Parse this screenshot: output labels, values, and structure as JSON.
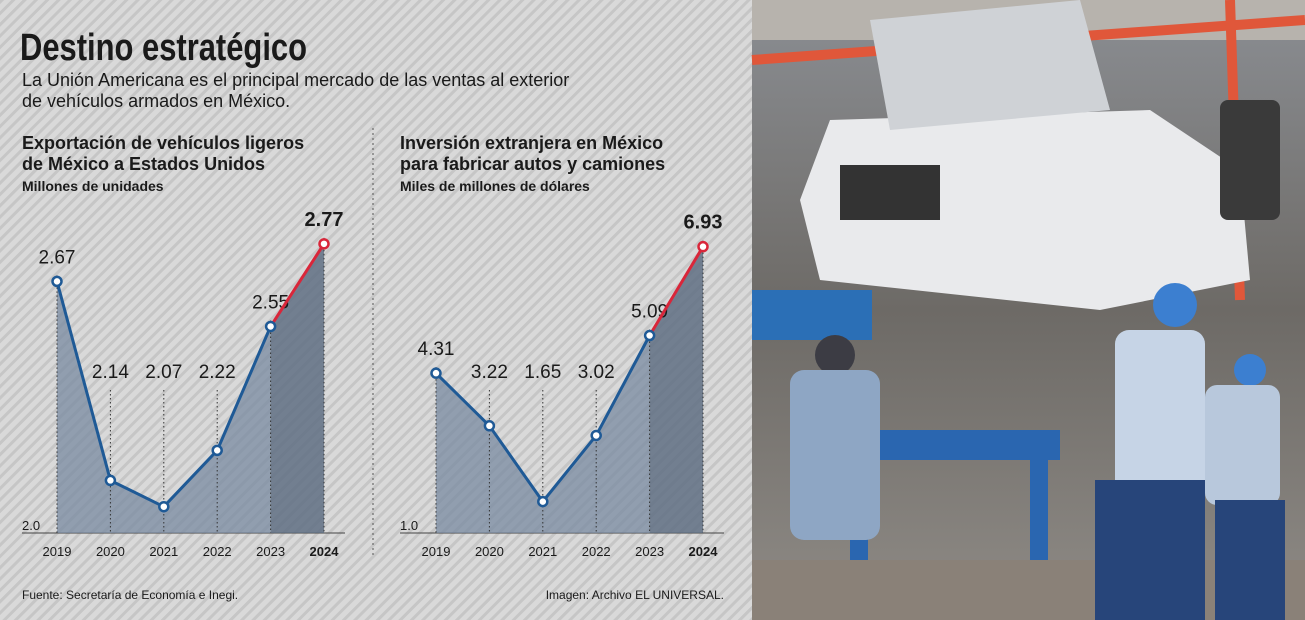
{
  "title": "Destino estratégico",
  "subtitle": [
    "La Unión Americana es el principal mercado de las ventas al exterior",
    "de vehículos armados en México."
  ],
  "chart_data": [
    {
      "type": "line",
      "title": [
        "Exportación de vehículos ligeros",
        "de México a Estados Unidos"
      ],
      "subtitle": "Millones de unidades",
      "categories": [
        "2019",
        "2020",
        "2021",
        "2022",
        "2023",
        "2024"
      ],
      "series": [
        {
          "color": "#1f5a96",
          "highlight_color": "#d9263a",
          "values": [
            2.67,
            2.14,
            2.07,
            2.22,
            2.55,
            2.77
          ]
        }
      ],
      "ylim": [
        2.0,
        2.9
      ],
      "yticks": [
        {
          "value": 2.0,
          "label": "2.0"
        }
      ]
    },
    {
      "type": "line",
      "title": [
        "Inversión extranjera en México",
        "para fabricar autos y camiones"
      ],
      "subtitle": "Miles de millones de dólares",
      "categories": [
        "2019",
        "2020",
        "2021",
        "2022",
        "2023",
        "2024"
      ],
      "series": [
        {
          "color": "#1f5a96",
          "highlight_color": "#d9263a",
          "values": [
            4.31,
            3.22,
            1.65,
            3.02,
            5.09,
            6.93
          ]
        }
      ],
      "ylim": [
        1.0,
        8.0
      ],
      "yticks": [
        {
          "value": 1.0,
          "label": "1.0"
        }
      ]
    }
  ],
  "source": "Fuente: Secretaría de Economía e Inegi.",
  "image_credit": "Imagen: Archivo EL UNIVERSAL."
}
